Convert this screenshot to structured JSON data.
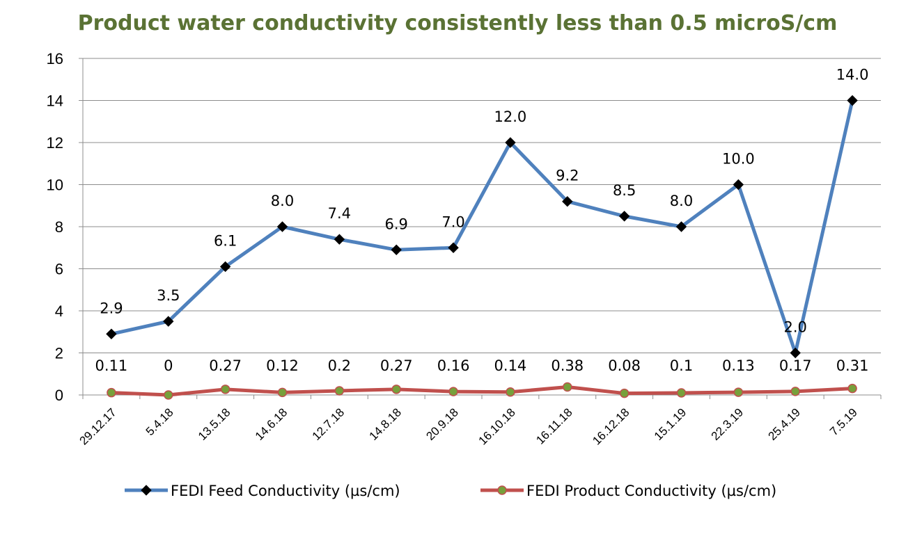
{
  "chart_data": {
    "type": "line",
    "title": "Product water conductivity consistently less than 0.5 microS/cm",
    "title_color": "#5a7234",
    "categories": [
      "29.12.17",
      "5.4.18",
      "13.5.18",
      "14.6.18",
      "12.7.18",
      "14.8.18",
      "20.9.18",
      "16.10.18",
      "16.11.18",
      "16.12.18",
      "15.1.19",
      "22.3.19",
      "25.4.19",
      "7.5.19"
    ],
    "ylim": [
      0,
      16
    ],
    "yticks": [
      0,
      2,
      4,
      6,
      8,
      10,
      12,
      14,
      16
    ],
    "grid": true,
    "legend_position": "bottom",
    "series": [
      {
        "name": "FEDI Feed Conductivity (µs/cm)",
        "values": [
          2.9,
          3.5,
          6.1,
          8.0,
          7.4,
          6.9,
          7.0,
          12.0,
          9.2,
          8.5,
          8.0,
          10.0,
          2.0,
          14.0
        ],
        "labels": [
          "2.9",
          "3.5",
          "6.1",
          "8.0",
          "7.4",
          "6.9",
          "7.0",
          "12.0",
          "9.2",
          "8.5",
          "8.0",
          "10.0",
          "2.0",
          "14.0"
        ],
        "color": "#4f81bd",
        "marker": "diamond",
        "marker_color": "#000000"
      },
      {
        "name": "FEDI Product Conductivity (µs/cm)",
        "values": [
          0.11,
          0,
          0.27,
          0.12,
          0.2,
          0.27,
          0.16,
          0.14,
          0.38,
          0.08,
          0.1,
          0.13,
          0.17,
          0.31
        ],
        "labels": [
          "0.11",
          "0",
          "0.27",
          "0.12",
          "0.2",
          "0.27",
          "0.16",
          "0.14",
          "0.38",
          "0.08",
          "0.1",
          "0.13",
          "0.17",
          "0.31"
        ],
        "color": "#c0504d",
        "marker": "circle",
        "marker_color": "#77a03b"
      }
    ]
  }
}
